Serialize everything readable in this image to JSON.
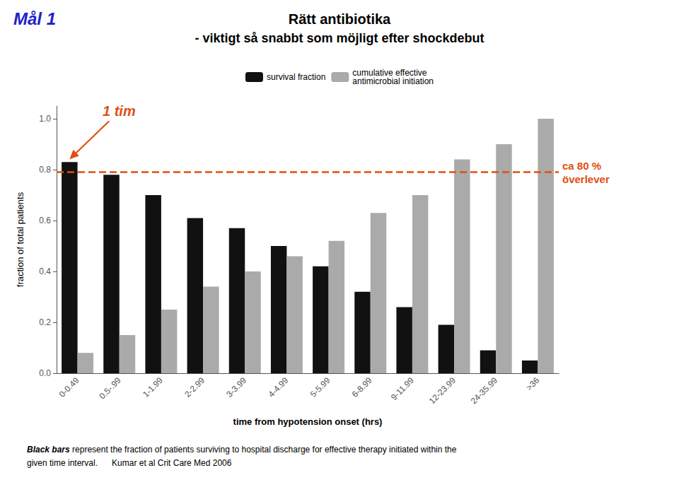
{
  "chart_data": {
    "type": "bar",
    "title": "Rätt antibiotika",
    "subtitle": "- viktigt så snabbt som möjligt efter shockdebut",
    "xlabel": "time from hypotension onset (hrs)",
    "ylabel": "fraction of total patients",
    "categories": [
      "0-0.49",
      "0.5-.99",
      "1-1.99",
      "2-2.99",
      "3-3.99",
      "4-4.99",
      "5-5.99",
      "6-8.99",
      "9-11.99",
      "12-23.99",
      "24-35.99",
      ">36"
    ],
    "series": [
      {
        "name": "survival fraction",
        "color": "#111111",
        "values": [
          0.83,
          0.78,
          0.7,
          0.61,
          0.57,
          0.5,
          0.42,
          0.32,
          0.26,
          0.19,
          0.09,
          0.05
        ]
      },
      {
        "name": "cumulative effective\nantimicrobial initiation",
        "color": "#aaaaaa",
        "values": [
          0.08,
          0.15,
          0.25,
          0.34,
          0.4,
          0.46,
          0.52,
          0.63,
          0.7,
          0.84,
          0.9,
          1.0
        ]
      }
    ],
    "ylim": [
      0,
      1.05
    ],
    "yticks": [
      {
        "value": 0,
        "label": "0.0"
      },
      0.2,
      0.4,
      0.6,
      0.8,
      {
        "value": 1,
        "label": "1.0"
      }
    ],
    "grid": false,
    "legend": "top",
    "annotations": [
      {
        "text": "Mål 1",
        "color": "#2020cc"
      },
      {
        "text": "1 tim",
        "color": "#e05010",
        "arrow_to": {
          "series": "survival fraction",
          "category": "0-0.49"
        }
      },
      {
        "text": "ca 80 %\növerlever",
        "color": "#e05010",
        "y": 0.785,
        "line_style": "dashed"
      }
    ],
    "caption": [
      "Black bars",
      " represent the fraction of patients surviving to hospital discharge for effective therapy initiated within the",
      "given time interval.      Kumar et al Crit Care Med 2006"
    ]
  }
}
